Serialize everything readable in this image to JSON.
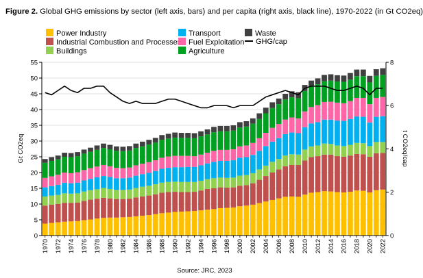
{
  "figure": {
    "number_label": "Figure 2.",
    "title": "Global GHG emissions by sector (left axis, bars) and per capita (right axis, black line), 1970-2022 (in Gt CO2eq)",
    "source": "Source: JRC, 2023"
  },
  "chart_data": {
    "type": "bar",
    "stacked": true,
    "x": [
      1970,
      1971,
      1972,
      1973,
      1974,
      1975,
      1976,
      1977,
      1978,
      1979,
      1980,
      1981,
      1982,
      1983,
      1984,
      1985,
      1986,
      1987,
      1988,
      1989,
      1990,
      1991,
      1992,
      1993,
      1994,
      1995,
      1996,
      1997,
      1998,
      1999,
      2000,
      2001,
      2002,
      2003,
      2004,
      2005,
      2006,
      2007,
      2008,
      2009,
      2010,
      2011,
      2012,
      2013,
      2014,
      2015,
      2016,
      2017,
      2018,
      2019,
      2020,
      2021,
      2022
    ],
    "x_tick_labels": [
      "1970",
      "1972",
      "1974",
      "1976",
      "1978",
      "1980",
      "1982",
      "1984",
      "1986",
      "1988",
      "1990",
      "1992",
      "1994",
      "1996",
      "1998",
      "2000",
      "2002",
      "2004",
      "2006",
      "2008",
      "2010",
      "2012",
      "2014",
      "2016",
      "2018",
      "2020",
      "2022"
    ],
    "ylabel": "Gt CO2eq",
    "ylim": [
      0,
      55
    ],
    "y_ticks": [
      0,
      5,
      10,
      15,
      20,
      25,
      30,
      35,
      40,
      45,
      50,
      55
    ],
    "y2label": "t CO2eq/cap",
    "y2lim": [
      0,
      8
    ],
    "y2_ticks": [
      0,
      2,
      4,
      6,
      8
    ],
    "legend_position": "top",
    "series": [
      {
        "name": "Power Industry",
        "color": "#ffc000",
        "values": [
          3.8,
          4.0,
          4.2,
          4.4,
          4.5,
          4.6,
          4.9,
          5.1,
          5.4,
          5.6,
          5.7,
          5.7,
          5.8,
          5.9,
          6.1,
          6.3,
          6.5,
          6.8,
          7.1,
          7.3,
          7.5,
          7.6,
          7.7,
          7.8,
          8.0,
          8.2,
          8.4,
          8.7,
          8.8,
          8.9,
          9.3,
          9.5,
          9.8,
          10.3,
          10.8,
          11.3,
          11.8,
          12.3,
          12.4,
          12.3,
          13.0,
          13.6,
          13.8,
          14.1,
          14.0,
          13.8,
          13.7,
          13.9,
          14.3,
          14.2,
          13.7,
          14.4,
          14.6
        ]
      },
      {
        "name": "Industrial Combustion and Processes",
        "color": "#c0504d",
        "values": [
          5.7,
          5.8,
          5.8,
          6.0,
          5.9,
          5.9,
          6.1,
          6.3,
          6.3,
          6.4,
          6.1,
          5.9,
          5.8,
          5.8,
          6.0,
          6.1,
          6.2,
          6.3,
          6.5,
          6.5,
          6.4,
          6.2,
          6.1,
          6.1,
          6.3,
          6.6,
          6.6,
          6.6,
          6.4,
          6.4,
          6.5,
          6.5,
          6.8,
          7.4,
          8.1,
          8.7,
          9.2,
          9.7,
          10.0,
          10.1,
          10.8,
          11.3,
          11.4,
          11.6,
          11.7,
          11.4,
          11.3,
          11.5,
          11.6,
          11.6,
          11.3,
          11.7,
          11.6
        ]
      },
      {
        "name": "Buildings",
        "color": "#92d050",
        "values": [
          2.9,
          2.9,
          2.9,
          3.0,
          2.9,
          2.9,
          3.0,
          3.0,
          3.0,
          3.1,
          3.0,
          2.9,
          2.9,
          2.9,
          3.0,
          3.1,
          3.1,
          3.2,
          3.2,
          3.2,
          3.2,
          3.2,
          3.2,
          3.1,
          3.1,
          3.1,
          3.2,
          3.1,
          3.1,
          3.1,
          3.2,
          3.2,
          3.2,
          3.3,
          3.3,
          3.4,
          3.3,
          3.4,
          3.4,
          3.3,
          3.5,
          3.4,
          3.4,
          3.5,
          3.4,
          3.4,
          3.4,
          3.4,
          3.5,
          3.5,
          3.4,
          3.6,
          3.5
        ]
      },
      {
        "name": "Transport",
        "color": "#00b0f0",
        "values": [
          2.9,
          3.0,
          3.2,
          3.4,
          3.3,
          3.4,
          3.5,
          3.6,
          3.8,
          3.8,
          3.8,
          3.7,
          3.7,
          3.8,
          3.9,
          4.0,
          4.1,
          4.2,
          4.4,
          4.5,
          4.6,
          4.7,
          4.8,
          4.8,
          4.9,
          5.0,
          5.2,
          5.3,
          5.4,
          5.5,
          5.7,
          5.7,
          5.8,
          5.9,
          6.2,
          6.4,
          6.6,
          6.8,
          6.9,
          6.8,
          7.1,
          7.3,
          7.4,
          7.6,
          7.7,
          7.9,
          8.0,
          8.2,
          8.4,
          8.4,
          7.5,
          8.0,
          8.2
        ]
      },
      {
        "name": "Fuel Exploitation",
        "color": "#ff66a8",
        "values": [
          3.0,
          3.1,
          3.2,
          3.2,
          3.2,
          3.3,
          3.3,
          3.4,
          3.4,
          3.5,
          3.4,
          3.3,
          3.2,
          3.2,
          3.3,
          3.3,
          3.4,
          3.4,
          3.5,
          3.6,
          3.6,
          3.6,
          3.5,
          3.4,
          3.4,
          3.4,
          3.5,
          3.5,
          3.5,
          3.5,
          3.6,
          3.7,
          3.8,
          4.0,
          4.2,
          4.4,
          4.5,
          4.6,
          4.8,
          4.7,
          5.0,
          5.2,
          5.4,
          5.6,
          5.7,
          5.7,
          5.6,
          5.7,
          5.9,
          6.0,
          5.8,
          6.0,
          6.1
        ]
      },
      {
        "name": "Agriculture",
        "color": "#00a020",
        "values": [
          4.8,
          4.9,
          4.9,
          5.0,
          5.1,
          5.1,
          5.2,
          5.2,
          5.3,
          5.4,
          5.4,
          5.4,
          5.4,
          5.4,
          5.5,
          5.5,
          5.6,
          5.6,
          5.7,
          5.7,
          5.8,
          5.7,
          5.7,
          5.7,
          5.8,
          5.8,
          5.9,
          5.9,
          5.9,
          5.9,
          6.0,
          6.0,
          6.1,
          6.1,
          6.2,
          6.3,
          6.3,
          6.4,
          6.4,
          6.4,
          6.5,
          6.5,
          6.6,
          6.6,
          6.7,
          6.7,
          6.8,
          6.8,
          6.9,
          6.9,
          6.9,
          7.0,
          7.0
        ]
      },
      {
        "name": "Waste",
        "color": "#404040",
        "values": [
          1.2,
          1.2,
          1.2,
          1.3,
          1.3,
          1.3,
          1.3,
          1.3,
          1.4,
          1.4,
          1.4,
          1.4,
          1.4,
          1.4,
          1.4,
          1.5,
          1.5,
          1.5,
          1.5,
          1.5,
          1.6,
          1.6,
          1.6,
          1.6,
          1.6,
          1.6,
          1.7,
          1.7,
          1.7,
          1.7,
          1.7,
          1.7,
          1.7,
          1.8,
          1.8,
          1.8,
          1.8,
          1.8,
          1.9,
          1.9,
          1.9,
          1.9,
          1.9,
          2.0,
          2.0,
          2.0,
          2.0,
          2.1,
          2.1,
          2.1,
          2.1,
          2.1,
          2.1
        ]
      }
    ],
    "line_series": {
      "name": "GHG/cap",
      "color": "#000000",
      "axis": "right",
      "values": [
        6.6,
        6.5,
        6.7,
        6.9,
        6.7,
        6.6,
        6.8,
        6.8,
        6.9,
        6.9,
        6.6,
        6.4,
        6.2,
        6.1,
        6.2,
        6.1,
        6.1,
        6.1,
        6.2,
        6.3,
        6.3,
        6.2,
        6.1,
        6.0,
        5.9,
        5.9,
        6.0,
        6.0,
        6.0,
        5.9,
        6.0,
        6.0,
        6.0,
        6.2,
        6.4,
        6.5,
        6.6,
        6.7,
        6.6,
        6.5,
        6.8,
        6.9,
        6.9,
        6.9,
        6.8,
        6.7,
        6.7,
        6.8,
        6.9,
        6.8,
        6.5,
        6.8,
        6.8
      ]
    }
  }
}
